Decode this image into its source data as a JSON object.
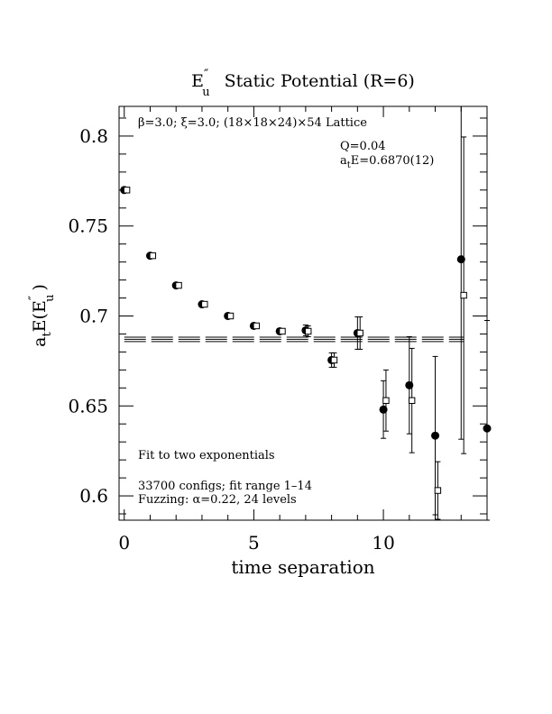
{
  "chart_data": {
    "type": "scatter",
    "title": {
      "main": "E",
      "sup": "″",
      "sub": "u",
      "rest": "Static Potential (R=6)"
    },
    "xlabel": "time separation",
    "ylabel": {
      "pre": "a",
      "pre_sub": "t",
      "mid": "E(E",
      "sup": "″",
      "sub": "u",
      "post": ")"
    },
    "xlim": [
      -0.2,
      14.0
    ],
    "ylim": [
      0.5865,
      0.8165
    ],
    "xticks": [
      {
        "v": 0,
        "label": "0"
      },
      {
        "v": 5,
        "label": "5"
      },
      {
        "v": 10,
        "label": "10"
      }
    ],
    "yticks": [
      {
        "v": 0.6,
        "label": "0.6"
      },
      {
        "v": 0.65,
        "label": "0.65"
      },
      {
        "v": 0.7,
        "label": "0.7"
      },
      {
        "v": 0.75,
        "label": "0.75"
      },
      {
        "v": 0.8,
        "label": "0.8"
      }
    ],
    "grid": false,
    "annotations": {
      "lattice": "β=3.0; ξ=3.0; (18×18×24)×54 Lattice",
      "q": "Q=0.04",
      "energy": {
        "pre": "a",
        "sub": "t",
        "rest": "E=0.6870(12)"
      },
      "fit_type": "Fit to two exponentials",
      "configs": "33700 configs; fit range 1–14",
      "fuzzing": "Fuzzing: α=0.22, 24 levels"
    },
    "fit": {
      "value": 0.687,
      "error": 0.0012,
      "x_range": [
        0,
        13.1
      ]
    },
    "series": [
      {
        "marker": "circle",
        "points": [
          {
            "x": 0,
            "y": 0.77,
            "err": 0.001
          },
          {
            "x": 1,
            "y": 0.7335,
            "err": 0.001
          },
          {
            "x": 2,
            "y": 0.717,
            "err": 0.001
          },
          {
            "x": 3,
            "y": 0.7065,
            "err": 0.001
          },
          {
            "x": 4,
            "y": 0.7,
            "err": 0.001
          },
          {
            "x": 5,
            "y": 0.6945,
            "err": 0.0015
          },
          {
            "x": 6,
            "y": 0.6915,
            "err": 0.0015
          },
          {
            "x": 7,
            "y": 0.692,
            "err": 0.003
          },
          {
            "x": 8,
            "y": 0.6755,
            "err": 0.004
          },
          {
            "x": 9,
            "y": 0.6905,
            "err": 0.009
          },
          {
            "x": 10,
            "y": 0.648,
            "err": 0.016
          },
          {
            "x": 11,
            "y": 0.6615,
            "err": 0.027
          },
          {
            "x": 12,
            "y": 0.6335,
            "err": 0.044
          },
          {
            "x": 13,
            "y": 0.7315,
            "err": 0.1
          },
          {
            "x": 14,
            "y": 0.6375,
            "err": 0.06
          }
        ]
      },
      {
        "marker": "square",
        "points": [
          {
            "x": 0,
            "y": 0.77,
            "err": 0.001
          },
          {
            "x": 1,
            "y": 0.7335,
            "err": 0.001
          },
          {
            "x": 2,
            "y": 0.717,
            "err": 0.001
          },
          {
            "x": 3,
            "y": 0.7065,
            "err": 0.001
          },
          {
            "x": 4,
            "y": 0.7,
            "err": 0.001
          },
          {
            "x": 5,
            "y": 0.6945,
            "err": 0.0015
          },
          {
            "x": 6,
            "y": 0.6915,
            "err": 0.0015
          },
          {
            "x": 7,
            "y": 0.6915,
            "err": 0.003
          },
          {
            "x": 8,
            "y": 0.6755,
            "err": 0.004
          },
          {
            "x": 9,
            "y": 0.6905,
            "err": 0.009
          },
          {
            "x": 10,
            "y": 0.653,
            "err": 0.017
          },
          {
            "x": 11,
            "y": 0.653,
            "err": 0.029
          },
          {
            "x": 12,
            "y": 0.603,
            "err": 0.016
          },
          {
            "x": 13,
            "y": 0.7115,
            "err": 0.088
          }
        ]
      }
    ]
  }
}
